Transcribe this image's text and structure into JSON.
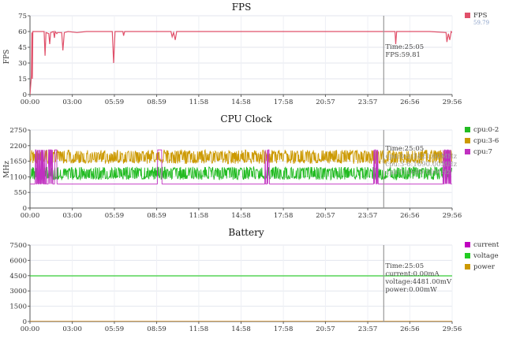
{
  "chart_data": [
    {
      "type": "line",
      "title": "FPS",
      "ylabel": "FPS",
      "ylim": [
        0,
        75
      ],
      "yticks": [
        0,
        15,
        30,
        45,
        60,
        75
      ],
      "xticks": [
        "00:00",
        "03:00",
        "05:59",
        "08:59",
        "11:58",
        "14:58",
        "17:58",
        "20:57",
        "23:57",
        "26:56",
        "29:56"
      ],
      "xlim_seconds": [
        0,
        1796
      ],
      "cursor_time": "25:05",
      "series": [
        {
          "name": "FPS",
          "legend_sub": "59.79",
          "color": "#e0506a",
          "baseline": 59.8,
          "points": [
            [
              0,
              0
            ],
            [
              6,
              18
            ],
            [
              8,
              59
            ],
            [
              10,
              15
            ],
            [
              12,
              60
            ],
            [
              60,
              60
            ],
            [
              64,
              37
            ],
            [
              68,
              59
            ],
            [
              80,
              58
            ],
            [
              84,
              48
            ],
            [
              88,
              59
            ],
            [
              100,
              60
            ],
            [
              104,
              54
            ],
            [
              107,
              60
            ],
            [
              114,
              58
            ],
            [
              117,
              59
            ],
            [
              135,
              59
            ],
            [
              140,
              42
            ],
            [
              146,
              59
            ],
            [
              162,
              60
            ],
            [
              200,
              59
            ],
            [
              240,
              60
            ],
            [
              350,
              60
            ],
            [
              356,
              30
            ],
            [
              362,
              60
            ],
            [
              395,
              60
            ],
            [
              398,
              56
            ],
            [
              403,
              60
            ],
            [
              600,
              60
            ],
            [
              605,
              55
            ],
            [
              611,
              59
            ],
            [
              618,
              52
            ],
            [
              624,
              60
            ],
            [
              900,
              60
            ],
            [
              1200,
              60
            ],
            [
              1500,
              60
            ],
            [
              1553,
              60
            ],
            [
              1556,
              48
            ],
            [
              1560,
              60
            ],
            [
              1700,
              60
            ],
            [
              1770,
              59
            ],
            [
              1774,
              50
            ],
            [
              1780,
              58
            ],
            [
              1786,
              52
            ],
            [
              1792,
              60
            ],
            [
              1796,
              59
            ]
          ]
        }
      ],
      "tooltip": [
        "Time:25:05",
        "FPS:59.81"
      ]
    },
    {
      "type": "line",
      "title": "CPU Clock",
      "ylabel": "MHz",
      "ylim": [
        0,
        2750
      ],
      "yticks": [
        0,
        550,
        1100,
        1650,
        2200,
        2750
      ],
      "xticks": [
        "00:00",
        "03:00",
        "05:59",
        "08:59",
        "11:58",
        "14:58",
        "17:58",
        "20:57",
        "23:57",
        "26:56",
        "29:56"
      ],
      "xlim_seconds": [
        0,
        1796
      ],
      "cursor_time": "25:05",
      "series": [
        {
          "name": "cpu:0-2",
          "color": "#22bb22",
          "low": 1000,
          "high": 1450,
          "base": 1280
        },
        {
          "name": "cpu:3-6",
          "color": "#cc9900",
          "low": 1560,
          "high": 2050,
          "base": 1800
        },
        {
          "name": "cpu:7",
          "color": "#c030c0",
          "low": 850,
          "high": 2050,
          "base": 850,
          "bursts": [
            [
              15,
              115
            ],
            [
              540,
              560
            ],
            [
              1000,
              1020
            ],
            [
              1460,
              1480
            ],
            [
              1755,
              1790
            ]
          ]
        }
      ],
      "tooltip": [
        "Time:25:05",
        "cpu:0-2:1421.00MHz",
        "cpu:3-6:1690.00MHz",
        "cpu:7:1690.00MHz"
      ]
    },
    {
      "type": "line",
      "title": "Battery",
      "ylabel": "",
      "ylim": [
        0,
        7500
      ],
      "yticks": [
        0,
        1500,
        3000,
        4500,
        6000,
        7500
      ],
      "xticks": [
        "00:00",
        "03:00",
        "05:59",
        "08:59",
        "11:58",
        "14:58",
        "17:58",
        "20:57",
        "23:57",
        "26:56",
        "29:56"
      ],
      "xlim_seconds": [
        0,
        1796
      ],
      "cursor_time": "25:05",
      "series": [
        {
          "name": "current",
          "color": "#c000c0",
          "values_const": 0
        },
        {
          "name": "voltage",
          "color": "#22cc22",
          "values_const": 4481
        },
        {
          "name": "power",
          "color": "#cc9900",
          "values_const": 0
        }
      ],
      "tooltip": [
        "Time:25:05",
        "current:0.00mA",
        "voltage:4481.00mV",
        "power:0.00mW"
      ]
    }
  ]
}
